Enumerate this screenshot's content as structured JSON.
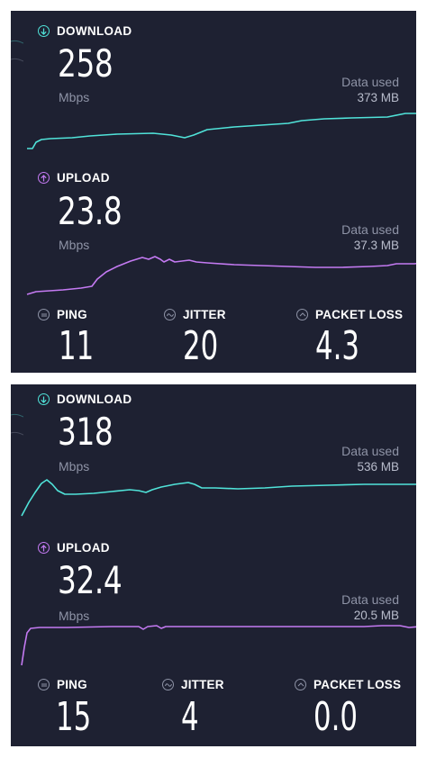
{
  "colors": {
    "panel_bg": "#1e2132",
    "download": "#50e3d9",
    "upload": "#c47af2",
    "muted": "#8e93a6"
  },
  "results": [
    {
      "download": {
        "label": "DOWNLOAD",
        "value": "258",
        "unit": "Mbps",
        "data_used_label": "Data used",
        "data_used_value": "373 MB",
        "icon": "arrow-down-circle-icon"
      },
      "upload": {
        "label": "UPLOAD",
        "value": "23.8",
        "unit": "Mbps",
        "data_used_label": "Data used",
        "data_used_value": "37.3 MB",
        "icon": "arrow-up-circle-icon"
      },
      "ping": {
        "label": "PING",
        "value": "11",
        "icon": "ping-icon"
      },
      "jitter": {
        "label": "JITTER",
        "value": "20",
        "icon": "jitter-icon"
      },
      "packet_loss": {
        "label": "PACKET LOSS",
        "value": "4.3",
        "icon": "packet-loss-icon"
      }
    },
    {
      "download": {
        "label": "DOWNLOAD",
        "value": "318",
        "unit": "Mbps",
        "data_used_label": "Data used",
        "data_used_value": "536 MB",
        "icon": "arrow-down-circle-icon"
      },
      "upload": {
        "label": "UPLOAD",
        "value": "32.4",
        "unit": "Mbps",
        "data_used_label": "Data used",
        "data_used_value": "20.5 MB",
        "icon": "arrow-up-circle-icon"
      },
      "ping": {
        "label": "PING",
        "value": "15",
        "icon": "ping-icon"
      },
      "jitter": {
        "label": "JITTER",
        "value": "4",
        "icon": "jitter-icon"
      },
      "packet_loss": {
        "label": "PACKET LOSS",
        "value": "0.0",
        "icon": "packet-loss-icon"
      }
    }
  ]
}
